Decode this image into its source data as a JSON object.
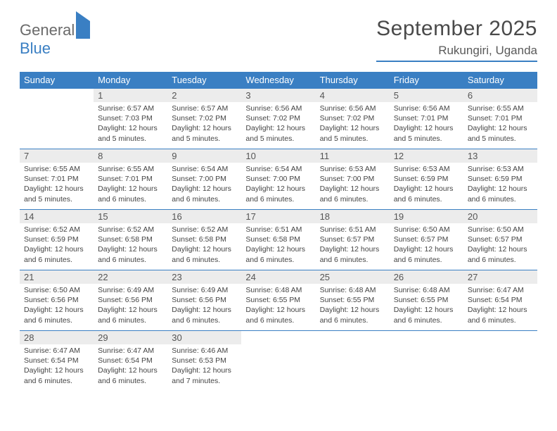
{
  "brand": {
    "part1": "General",
    "part2": "Blue"
  },
  "title": "September 2025",
  "location": "Rukungiri, Uganda",
  "colors": {
    "accent": "#3a7fc3",
    "header_bg": "#3a7fc3",
    "daynum_bg": "#ececec",
    "text": "#333333",
    "background": "#ffffff"
  },
  "weekdays": [
    "Sunday",
    "Monday",
    "Tuesday",
    "Wednesday",
    "Thursday",
    "Friday",
    "Saturday"
  ],
  "weeks": [
    [
      {
        "n": "",
        "sr": "",
        "ss": "",
        "dl": ""
      },
      {
        "n": "1",
        "sr": "Sunrise: 6:57 AM",
        "ss": "Sunset: 7:03 PM",
        "dl": "Daylight: 12 hours and 5 minutes."
      },
      {
        "n": "2",
        "sr": "Sunrise: 6:57 AM",
        "ss": "Sunset: 7:02 PM",
        "dl": "Daylight: 12 hours and 5 minutes."
      },
      {
        "n": "3",
        "sr": "Sunrise: 6:56 AM",
        "ss": "Sunset: 7:02 PM",
        "dl": "Daylight: 12 hours and 5 minutes."
      },
      {
        "n": "4",
        "sr": "Sunrise: 6:56 AM",
        "ss": "Sunset: 7:02 PM",
        "dl": "Daylight: 12 hours and 5 minutes."
      },
      {
        "n": "5",
        "sr": "Sunrise: 6:56 AM",
        "ss": "Sunset: 7:01 PM",
        "dl": "Daylight: 12 hours and 5 minutes."
      },
      {
        "n": "6",
        "sr": "Sunrise: 6:55 AM",
        "ss": "Sunset: 7:01 PM",
        "dl": "Daylight: 12 hours and 5 minutes."
      }
    ],
    [
      {
        "n": "7",
        "sr": "Sunrise: 6:55 AM",
        "ss": "Sunset: 7:01 PM",
        "dl": "Daylight: 12 hours and 5 minutes."
      },
      {
        "n": "8",
        "sr": "Sunrise: 6:55 AM",
        "ss": "Sunset: 7:01 PM",
        "dl": "Daylight: 12 hours and 6 minutes."
      },
      {
        "n": "9",
        "sr": "Sunrise: 6:54 AM",
        "ss": "Sunset: 7:00 PM",
        "dl": "Daylight: 12 hours and 6 minutes."
      },
      {
        "n": "10",
        "sr": "Sunrise: 6:54 AM",
        "ss": "Sunset: 7:00 PM",
        "dl": "Daylight: 12 hours and 6 minutes."
      },
      {
        "n": "11",
        "sr": "Sunrise: 6:53 AM",
        "ss": "Sunset: 7:00 PM",
        "dl": "Daylight: 12 hours and 6 minutes."
      },
      {
        "n": "12",
        "sr": "Sunrise: 6:53 AM",
        "ss": "Sunset: 6:59 PM",
        "dl": "Daylight: 12 hours and 6 minutes."
      },
      {
        "n": "13",
        "sr": "Sunrise: 6:53 AM",
        "ss": "Sunset: 6:59 PM",
        "dl": "Daylight: 12 hours and 6 minutes."
      }
    ],
    [
      {
        "n": "14",
        "sr": "Sunrise: 6:52 AM",
        "ss": "Sunset: 6:59 PM",
        "dl": "Daylight: 12 hours and 6 minutes."
      },
      {
        "n": "15",
        "sr": "Sunrise: 6:52 AM",
        "ss": "Sunset: 6:58 PM",
        "dl": "Daylight: 12 hours and 6 minutes."
      },
      {
        "n": "16",
        "sr": "Sunrise: 6:52 AM",
        "ss": "Sunset: 6:58 PM",
        "dl": "Daylight: 12 hours and 6 minutes."
      },
      {
        "n": "17",
        "sr": "Sunrise: 6:51 AM",
        "ss": "Sunset: 6:58 PM",
        "dl": "Daylight: 12 hours and 6 minutes."
      },
      {
        "n": "18",
        "sr": "Sunrise: 6:51 AM",
        "ss": "Sunset: 6:57 PM",
        "dl": "Daylight: 12 hours and 6 minutes."
      },
      {
        "n": "19",
        "sr": "Sunrise: 6:50 AM",
        "ss": "Sunset: 6:57 PM",
        "dl": "Daylight: 12 hours and 6 minutes."
      },
      {
        "n": "20",
        "sr": "Sunrise: 6:50 AM",
        "ss": "Sunset: 6:57 PM",
        "dl": "Daylight: 12 hours and 6 minutes."
      }
    ],
    [
      {
        "n": "21",
        "sr": "Sunrise: 6:50 AM",
        "ss": "Sunset: 6:56 PM",
        "dl": "Daylight: 12 hours and 6 minutes."
      },
      {
        "n": "22",
        "sr": "Sunrise: 6:49 AM",
        "ss": "Sunset: 6:56 PM",
        "dl": "Daylight: 12 hours and 6 minutes."
      },
      {
        "n": "23",
        "sr": "Sunrise: 6:49 AM",
        "ss": "Sunset: 6:56 PM",
        "dl": "Daylight: 12 hours and 6 minutes."
      },
      {
        "n": "24",
        "sr": "Sunrise: 6:48 AM",
        "ss": "Sunset: 6:55 PM",
        "dl": "Daylight: 12 hours and 6 minutes."
      },
      {
        "n": "25",
        "sr": "Sunrise: 6:48 AM",
        "ss": "Sunset: 6:55 PM",
        "dl": "Daylight: 12 hours and 6 minutes."
      },
      {
        "n": "26",
        "sr": "Sunrise: 6:48 AM",
        "ss": "Sunset: 6:55 PM",
        "dl": "Daylight: 12 hours and 6 minutes."
      },
      {
        "n": "27",
        "sr": "Sunrise: 6:47 AM",
        "ss": "Sunset: 6:54 PM",
        "dl": "Daylight: 12 hours and 6 minutes."
      }
    ],
    [
      {
        "n": "28",
        "sr": "Sunrise: 6:47 AM",
        "ss": "Sunset: 6:54 PM",
        "dl": "Daylight: 12 hours and 6 minutes."
      },
      {
        "n": "29",
        "sr": "Sunrise: 6:47 AM",
        "ss": "Sunset: 6:54 PM",
        "dl": "Daylight: 12 hours and 6 minutes."
      },
      {
        "n": "30",
        "sr": "Sunrise: 6:46 AM",
        "ss": "Sunset: 6:53 PM",
        "dl": "Daylight: 12 hours and 7 minutes."
      },
      {
        "n": "",
        "sr": "",
        "ss": "",
        "dl": ""
      },
      {
        "n": "",
        "sr": "",
        "ss": "",
        "dl": ""
      },
      {
        "n": "",
        "sr": "",
        "ss": "",
        "dl": ""
      },
      {
        "n": "",
        "sr": "",
        "ss": "",
        "dl": ""
      }
    ]
  ]
}
